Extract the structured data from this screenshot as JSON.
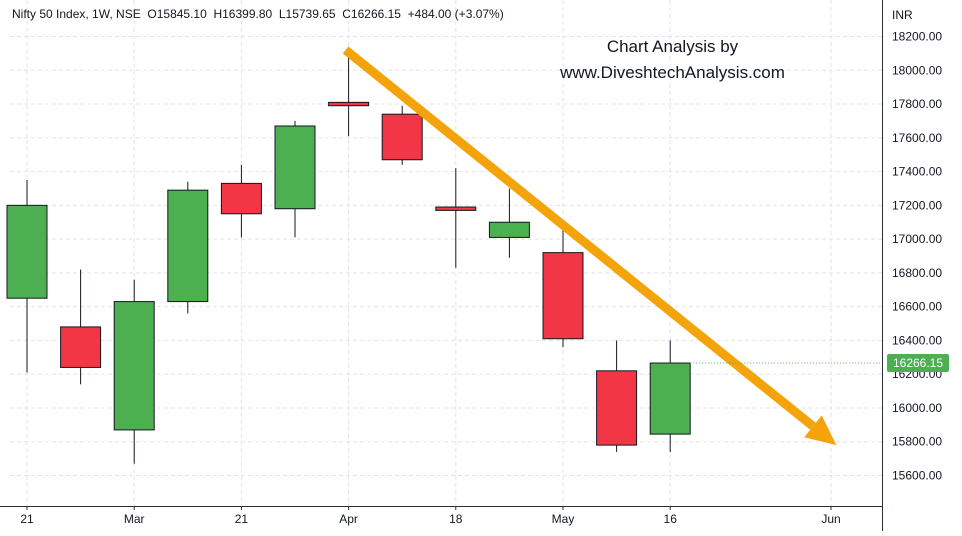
{
  "legend": {
    "symbol": "Nifty 50 Index, 1W, NSE",
    "open": "O15845.10",
    "high": "H16399.80",
    "low": "L15739.65",
    "close": "C16266.15",
    "change": "+484.00 (+3.07%)"
  },
  "watermark": {
    "line1": "Chart Analysis by",
    "line2": "www.DiveshtechAnalysis.com"
  },
  "currency": "INR",
  "last_price": "16266.15",
  "colors": {
    "up": "#4caf50",
    "down": "#f23645",
    "arrow": "#f5a30a",
    "badge": "#4caf50",
    "grid": "#e0e3eb"
  },
  "chart_data": {
    "type": "candlestick",
    "ylim": [
      15500,
      18350
    ],
    "y_ticks": [
      15600,
      15800,
      16000,
      16200,
      16400,
      16600,
      16800,
      17000,
      17200,
      17400,
      17600,
      17800,
      18000,
      18200
    ],
    "x_ticks": [
      {
        "label": "21",
        "index": 0
      },
      {
        "label": "Mar",
        "index": 2
      },
      {
        "label": "21",
        "index": 4
      },
      {
        "label": "Apr",
        "index": 6
      },
      {
        "label": "18",
        "index": 8
      },
      {
        "label": "May",
        "index": 10
      },
      {
        "label": "16",
        "index": 12
      },
      {
        "label": "Jun",
        "index": 15
      }
    ],
    "candles": [
      {
        "o": 16650,
        "h": 17350,
        "l": 16210,
        "c": 17200
      },
      {
        "o": 16480,
        "h": 16820,
        "l": 16140,
        "c": 16240
      },
      {
        "o": 15870,
        "h": 16760,
        "l": 15670,
        "c": 16630
      },
      {
        "o": 16630,
        "h": 17340,
        "l": 16560,
        "c": 17290
      },
      {
        "o": 17330,
        "h": 17440,
        "l": 17010,
        "c": 17150
      },
      {
        "o": 17180,
        "h": 17700,
        "l": 17010,
        "c": 17670
      },
      {
        "o": 17810,
        "h": 18110,
        "l": 17610,
        "c": 17790
      },
      {
        "o": 17740,
        "h": 17790,
        "l": 17440,
        "c": 17470
      },
      {
        "o": 17190,
        "h": 17420,
        "l": 16830,
        "c": 17170
      },
      {
        "o": 17010,
        "h": 17300,
        "l": 16890,
        "c": 17100
      },
      {
        "o": 16920,
        "h": 17050,
        "l": 16360,
        "c": 16410
      },
      {
        "o": 16220,
        "h": 16400,
        "l": 15740,
        "c": 15780
      },
      {
        "o": 15845.1,
        "h": 16399.8,
        "l": 15739.65,
        "c": 16266.15
      }
    ],
    "trend_arrow": {
      "from": {
        "index": 6,
        "price": 18120
      },
      "to": {
        "index": 15.1,
        "price": 15780
      }
    },
    "grid": true
  }
}
